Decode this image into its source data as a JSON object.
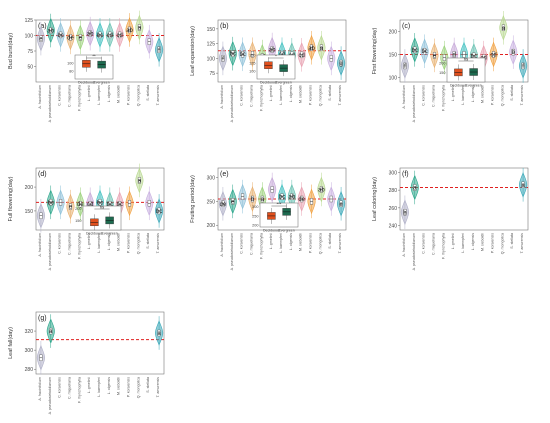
{
  "figure": {
    "species": [
      "A. fraxinifolium",
      "A. pseudosieboldianum",
      "C. koraiensis",
      "C. miqueliana",
      "F. rhynchophylla",
      "L. gmelinii",
      "L. kaempferi",
      "L. olgensis",
      "M. sieboldii",
      "P. koraiensis",
      "Q. mongolica",
      "S. stellata",
      "T. amurensis"
    ],
    "inset_groups": [
      "Deciduous",
      "Evergreen"
    ],
    "colors": {
      "ref_line": "#e02020",
      "deciduous": "#e0501e",
      "evergreen": "#1e6b50",
      "species": [
        "#b0b0c8",
        "#2aa58a",
        "#8cc0d8",
        "#e8b070",
        "#9ad17a",
        "#c6a8d8",
        "#40c0c0",
        "#66c0b0",
        "#e8a0b0",
        "#f0a040",
        "#b8d890",
        "#c8b0e0",
        "#3aa8b8"
      ]
    }
  },
  "chart_data": [
    {
      "type": "violin",
      "panel": "(a)",
      "ylabel": "Bud burst(day)",
      "ylim": [
        25,
        125
      ],
      "yticks": [
        50,
        75,
        100,
        125
      ],
      "ref_line": 100,
      "medians": [
        95,
        108,
        101,
        97,
        97,
        103,
        101,
        101,
        101,
        109,
        113,
        90,
        77
      ],
      "letters": [
        "e",
        "ab",
        "bc",
        "de",
        "e",
        "ab",
        "bc",
        "cd",
        "cd",
        "ab",
        "a",
        "",
        "f"
      ],
      "inset": {
        "sig": "**",
        "ylim": [
          60,
          120
        ],
        "yticks": [
          80,
          100
        ],
        "medians": [
          98,
          96
        ]
      }
    },
    {
      "type": "violin",
      "panel": "(b)",
      "ylabel": "Leaf expansion(day)",
      "ylim": [
        60,
        165
      ],
      "yticks": [
        75,
        100,
        125,
        150
      ],
      "ref_line": 113,
      "medians": [
        100,
        108,
        107,
        107,
        103,
        115,
        107,
        106,
        106,
        118,
        118,
        100,
        92
      ],
      "letters": [
        "f",
        "bc",
        "bc",
        "",
        "ef",
        "ab",
        "cd",
        "cd",
        "cd",
        "ab",
        "a",
        "",
        "g"
      ],
      "inset": {
        "sig": "*",
        "ylim": [
          75,
          150
        ],
        "yticks": [
          100,
          125,
          150
        ],
        "medians": [
          118,
          109
        ]
      }
    },
    {
      "type": "violin",
      "panel": "(c)",
      "ylabel": "First flowering(day)",
      "ylim": [
        90,
        225
      ],
      "yticks": [
        100,
        150,
        200
      ],
      "ref_line": 150,
      "medians": [
        125,
        160,
        157,
        148,
        143,
        150,
        150,
        147,
        143,
        150,
        208,
        155,
        125
      ],
      "letters": [
        "f",
        "bc",
        "bc",
        "e",
        "",
        "d",
        "",
        "bc",
        "cd",
        "cd",
        "a",
        "b",
        "f"
      ],
      "inset": {
        "sig": "ns",
        "ylim": [
          100,
          225
        ],
        "yticks": [
          150,
          200
        ],
        "medians": [
          150,
          152
        ]
      }
    },
    {
      "type": "violin",
      "panel": "(d)",
      "ylabel": "Full flowering(day)",
      "ylim": [
        110,
        240
      ],
      "yticks": [
        150,
        200
      ],
      "ref_line": 168,
      "medians": [
        140,
        168,
        168,
        159,
        164,
        164,
        168,
        164,
        164,
        166,
        214,
        166,
        150
      ],
      "letters": [
        "",
        "bc",
        "",
        "e",
        "de",
        "cd",
        "bc",
        "bc",
        "bc",
        "",
        "a",
        "",
        "bc"
      ],
      "inset": {
        "sig": "ns",
        "ylim": [
          110,
          210
        ],
        "yticks": [
          100,
          150,
          200
        ],
        "medians": [
          142,
          150
        ]
      }
    },
    {
      "type": "violin",
      "panel": "(e)",
      "ylabel": "Fruiting period(day)",
      "ylim": [
        190,
        320
      ],
      "yticks": [
        200,
        250,
        300
      ],
      "ref_line": 255,
      "medians": [
        245,
        250,
        260,
        255,
        255,
        275,
        260,
        260,
        255,
        250,
        275,
        255,
        245
      ],
      "letters": [
        "de",
        "e",
        "",
        "b",
        "a",
        "",
        "bc",
        "ab",
        "de",
        "",
        "ab",
        "",
        "e"
      ],
      "inset": {
        "sig": "***",
        "ylim": [
          190,
          320
        ],
        "yticks": [
          200,
          250,
          300
        ],
        "medians": [
          250,
          272
        ]
      }
    },
    {
      "type": "violin",
      "panel": "(f)",
      "ylabel": "Leaf coloring(day)",
      "ylim": [
        235,
        305
      ],
      "yticks": [
        240,
        260,
        280,
        300
      ],
      "ref_line": 283,
      "medians": [
        255,
        283,
        null,
        null,
        null,
        null,
        null,
        null,
        null,
        null,
        null,
        null,
        286
      ],
      "letters": [
        "b",
        "a",
        "",
        "",
        "",
        "",
        "",
        "",
        "",
        "",
        "",
        "",
        "a"
      ]
    },
    {
      "type": "violin",
      "panel": "(g)",
      "ylabel": "Leaf fall(day)",
      "ylim": [
        275,
        340
      ],
      "yticks": [
        280,
        300,
        320
      ],
      "ref_line": 311,
      "medians": [
        292,
        320,
        null,
        null,
        null,
        null,
        null,
        null,
        null,
        null,
        null,
        null,
        318
      ],
      "letters": [
        "",
        "a",
        "",
        "",
        "",
        "",
        "",
        "",
        "",
        "",
        "",
        "",
        "a"
      ]
    }
  ]
}
